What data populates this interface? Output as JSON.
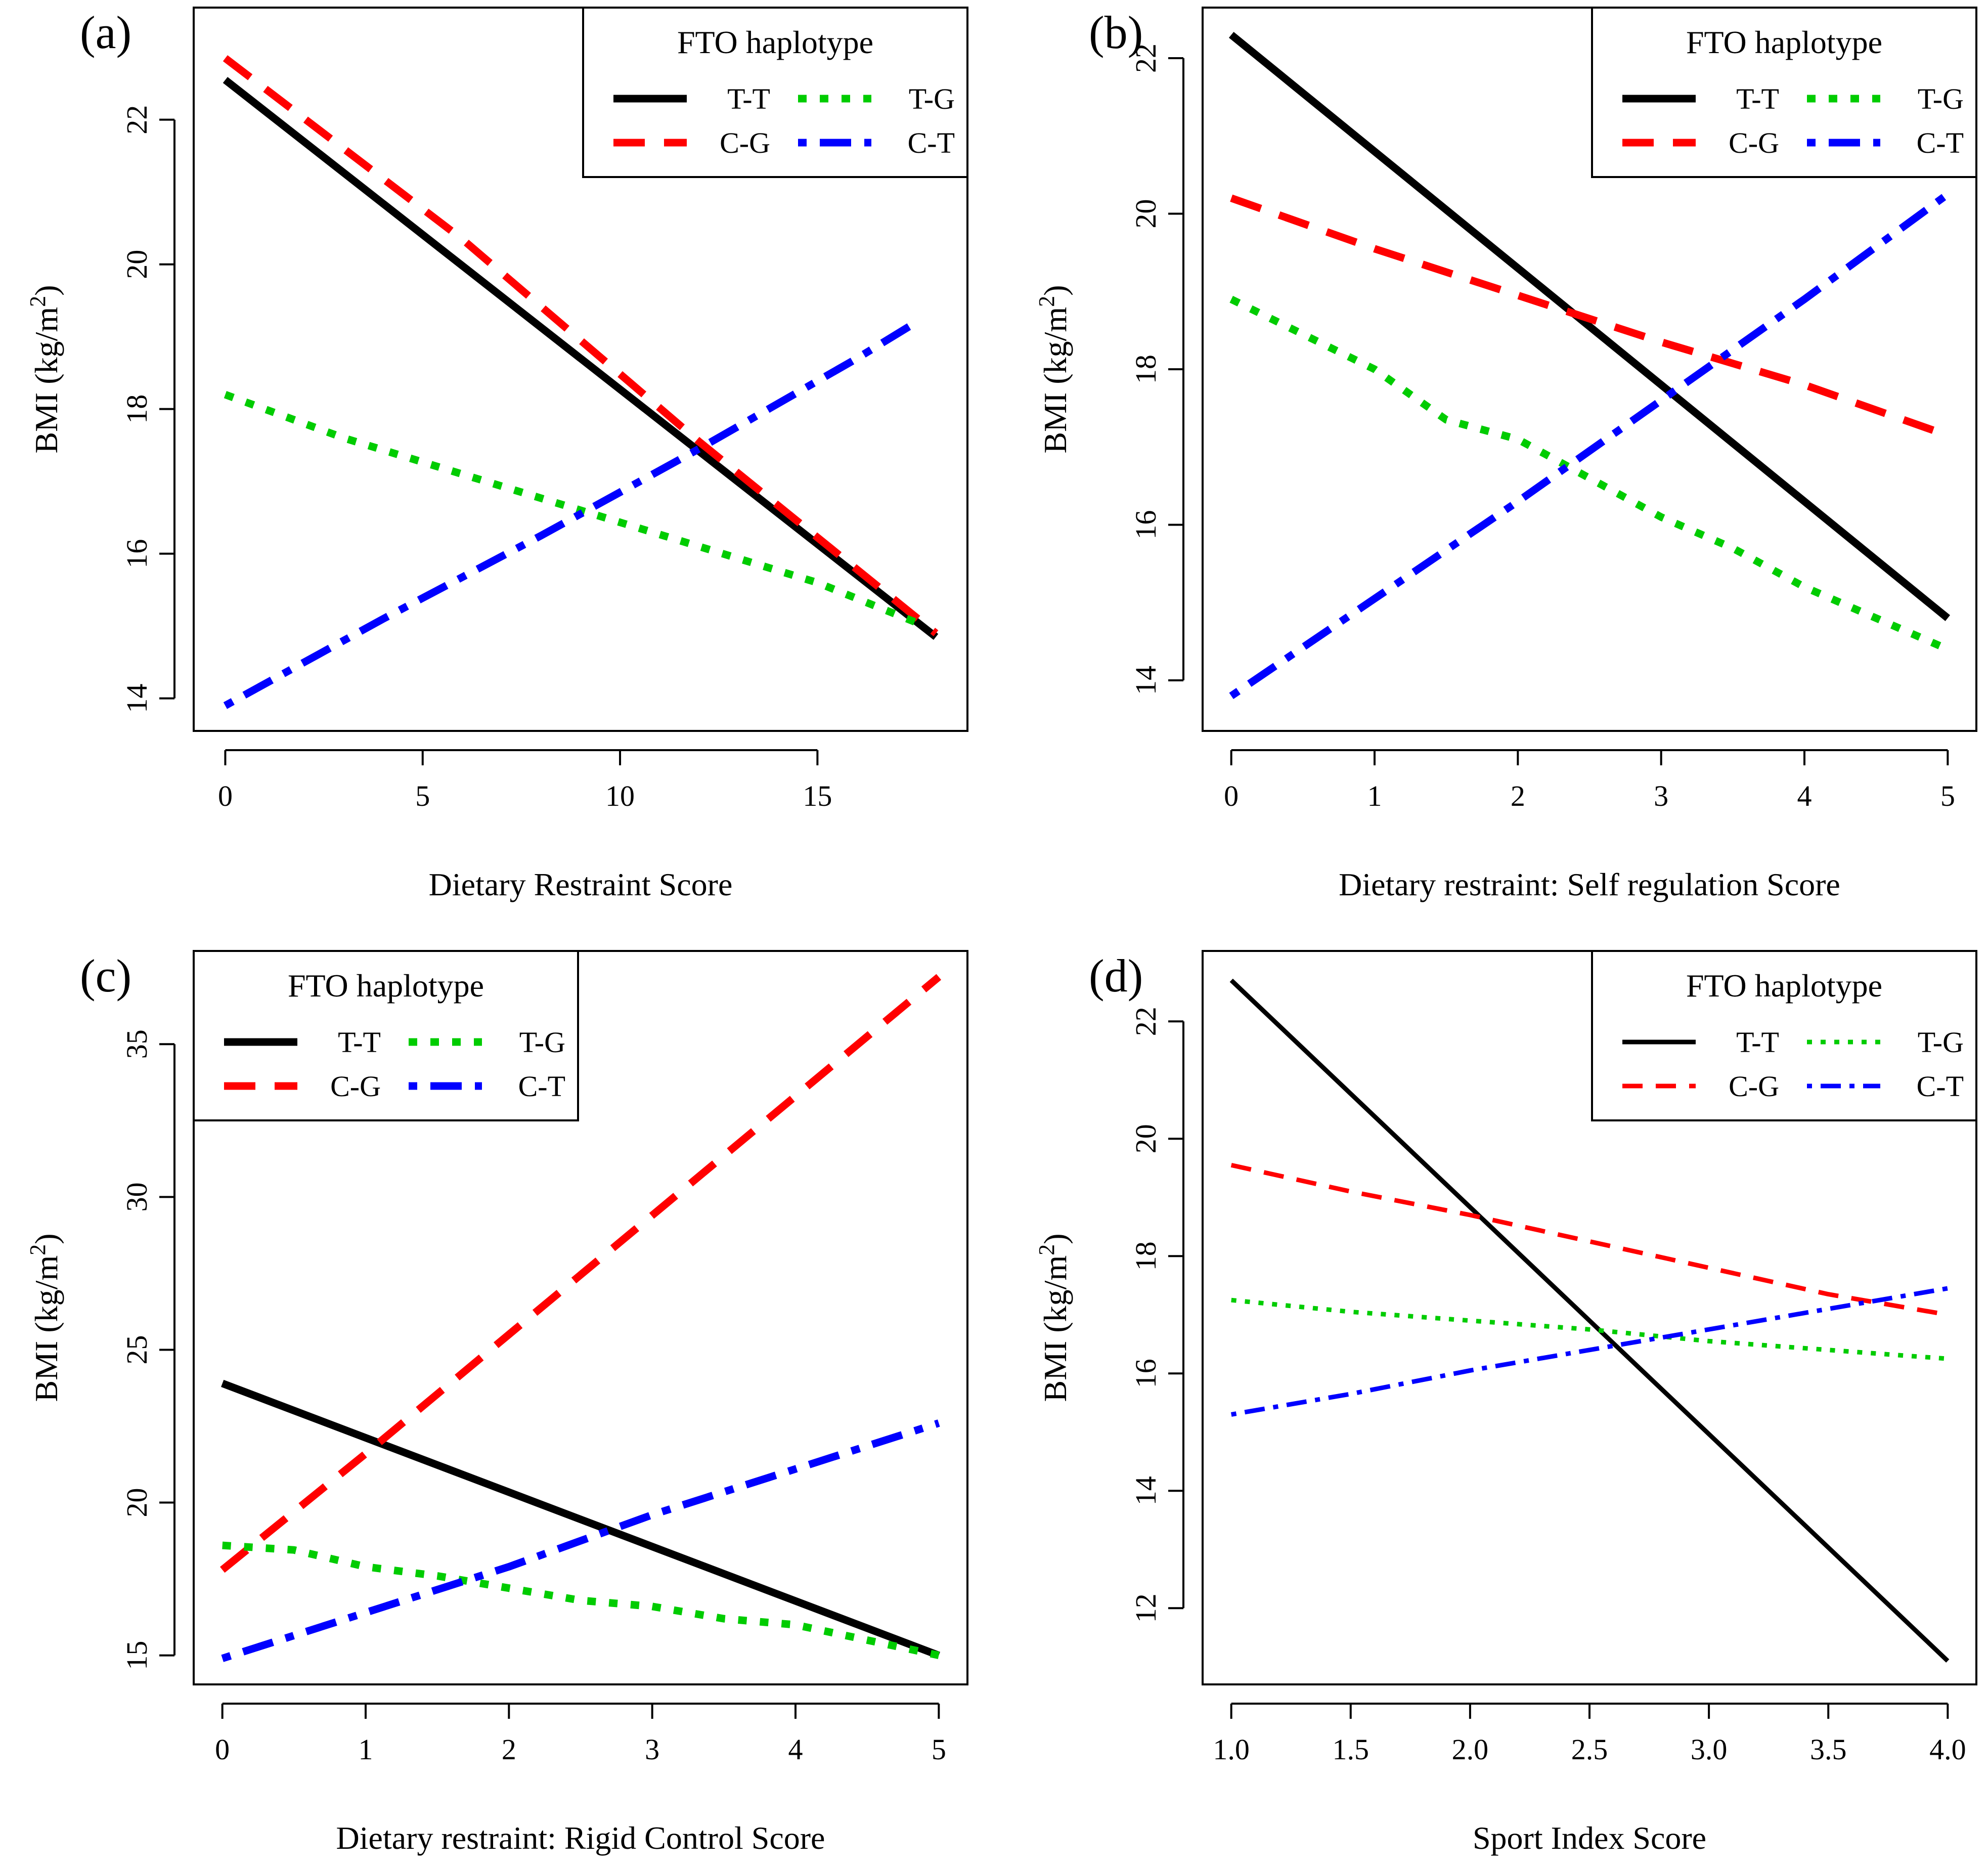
{
  "figure": {
    "ylabel_prefix": "BMI (kg/m",
    "ylabel_superscript": "2",
    "ylabel_suffix": ")",
    "legend_title": "FTO haplotype",
    "series_styles": {
      "T-T": {
        "color": "#000000",
        "dash": "solid"
      },
      "C-G": {
        "color": "#ff0000",
        "dash": "dashed"
      },
      "T-G": {
        "color": "#00cc00",
        "dash": "dotted"
      },
      "C-T": {
        "color": "#0000ff",
        "dash": "dotdash"
      }
    }
  },
  "chart_data": [
    {
      "panel": "(a)",
      "type": "line",
      "xlabel": "Dietary Restraint Score",
      "ylabel": "BMI (kg/m2)",
      "x_range": [
        -0.8,
        18.8
      ],
      "y_range": [
        13.55,
        23.55
      ],
      "xticks": [
        0,
        5,
        10,
        15
      ],
      "xtick_labels": [
        "0",
        "5",
        "10",
        "15"
      ],
      "yticks": [
        14,
        16,
        18,
        20,
        22
      ],
      "ytick_labels": [
        "14",
        "16",
        "18",
        "20",
        "22"
      ],
      "legend_position": "top-right",
      "legend_style": "thick",
      "series": [
        {
          "name": "T-T",
          "x": [
            0,
            18
          ],
          "y": [
            22.55,
            14.85
          ]
        },
        {
          "name": "C-G",
          "x": [
            0,
            6,
            12,
            18
          ],
          "y": [
            22.85,
            20.35,
            17.55,
            14.9
          ]
        },
        {
          "name": "T-G",
          "x": [
            0,
            3,
            6,
            9,
            12,
            15,
            17.5
          ],
          "y": [
            18.2,
            17.6,
            17.1,
            16.6,
            16.1,
            15.6,
            15.05
          ]
        },
        {
          "name": "C-T",
          "x": [
            0,
            4,
            8,
            12,
            16,
            17.5
          ],
          "y": [
            13.9,
            15.1,
            16.25,
            17.45,
            18.7,
            19.2
          ]
        }
      ]
    },
    {
      "panel": "(b)",
      "type": "line",
      "xlabel": "Dietary restraint: Self regulation Score",
      "ylabel": "BMI (kg/m2)",
      "x_range": [
        -0.2,
        5.2
      ],
      "y_range": [
        13.35,
        22.65
      ],
      "xticks": [
        0,
        1,
        2,
        3,
        4,
        5
      ],
      "xtick_labels": [
        "0",
        "1",
        "2",
        "3",
        "4",
        "5"
      ],
      "yticks": [
        14,
        16,
        18,
        20,
        22
      ],
      "ytick_labels": [
        "14",
        "16",
        "18",
        "20",
        "22"
      ],
      "legend_position": "top-right",
      "legend_style": "thick",
      "series": [
        {
          "name": "T-T",
          "x": [
            0,
            5
          ],
          "y": [
            22.3,
            14.8
          ]
        },
        {
          "name": "C-G",
          "x": [
            0,
            1,
            2,
            3,
            4,
            5
          ],
          "y": [
            20.2,
            19.55,
            18.95,
            18.35,
            17.8,
            17.15
          ]
        },
        {
          "name": "T-G",
          "x": [
            0,
            1,
            1.5,
            2,
            2.5,
            3,
            3.5,
            4,
            4.5,
            5
          ],
          "y": [
            18.9,
            18.0,
            17.35,
            17.1,
            16.6,
            16.1,
            15.7,
            15.2,
            14.8,
            14.4
          ]
        },
        {
          "name": "C-T",
          "x": [
            0,
            1,
            2,
            3,
            4,
            5
          ],
          "y": [
            13.8,
            15.05,
            16.3,
            17.6,
            18.9,
            20.25
          ]
        }
      ]
    },
    {
      "panel": "(c)",
      "type": "line",
      "xlabel": "Dietary restraint: Rigid Control Score",
      "ylabel": "BMI (kg/m2)",
      "x_range": [
        -0.2,
        5.2
      ],
      "y_range": [
        14.05,
        38.05
      ],
      "xticks": [
        0,
        1,
        2,
        3,
        4,
        5
      ],
      "xtick_labels": [
        "0",
        "1",
        "2",
        "3",
        "4",
        "5"
      ],
      "yticks": [
        15,
        20,
        25,
        30,
        35
      ],
      "ytick_labels": [
        "15",
        "20",
        "25",
        "30",
        "35"
      ],
      "legend_position": "top-left",
      "legend_style": "thick",
      "series": [
        {
          "name": "T-T",
          "x": [
            0,
            5
          ],
          "y": [
            23.9,
            15.0
          ]
        },
        {
          "name": "C-G",
          "x": [
            0,
            1,
            2,
            3,
            4,
            5
          ],
          "y": [
            17.8,
            21.6,
            25.5,
            29.4,
            33.3,
            37.2
          ]
        },
        {
          "name": "T-G",
          "x": [
            0,
            0.5,
            1,
            1.5,
            2,
            2.5,
            3,
            3.5,
            4,
            4.5,
            5
          ],
          "y": [
            18.6,
            18.45,
            17.9,
            17.6,
            17.2,
            16.8,
            16.6,
            16.2,
            16.0,
            15.5,
            15.0
          ]
        },
        {
          "name": "C-T",
          "x": [
            0,
            1,
            2,
            3,
            4,
            5
          ],
          "y": [
            14.9,
            16.4,
            17.9,
            19.6,
            21.1,
            22.6
          ]
        }
      ]
    },
    {
      "panel": "(d)",
      "type": "line",
      "xlabel": "Sport Index Score",
      "ylabel": "BMI (kg/m2)",
      "x_range": [
        0.88,
        4.12
      ],
      "y_range": [
        10.7,
        23.2
      ],
      "xticks": [
        1.0,
        1.5,
        2.0,
        2.5,
        3.0,
        3.5,
        4.0
      ],
      "xtick_labels": [
        "1.0",
        "1.5",
        "2.0",
        "2.5",
        "3.0",
        "3.5",
        "4.0"
      ],
      "yticks": [
        12,
        14,
        16,
        18,
        20,
        22
      ],
      "ytick_labels": [
        "12",
        "14",
        "16",
        "18",
        "20",
        "22"
      ],
      "legend_position": "top-right",
      "legend_style": "thin",
      "series": [
        {
          "name": "T-T",
          "x": [
            1.0,
            4.0
          ],
          "y": [
            22.7,
            11.1
          ]
        },
        {
          "name": "C-G",
          "x": [
            1.0,
            1.5,
            2.0,
            2.5,
            3.0,
            3.5,
            4.0
          ],
          "y": [
            19.55,
            19.1,
            18.7,
            18.25,
            17.8,
            17.35,
            17.0
          ]
        },
        {
          "name": "T-G",
          "x": [
            1.0,
            1.5,
            2.0,
            2.5,
            3.0,
            3.5,
            4.0
          ],
          "y": [
            17.25,
            17.05,
            16.9,
            16.75,
            16.55,
            16.4,
            16.25
          ]
        },
        {
          "name": "C-T",
          "x": [
            1.0,
            1.5,
            2.0,
            2.5,
            3.0,
            3.5,
            4.0
          ],
          "y": [
            15.3,
            15.65,
            16.05,
            16.4,
            16.75,
            17.1,
            17.45
          ]
        }
      ]
    }
  ]
}
